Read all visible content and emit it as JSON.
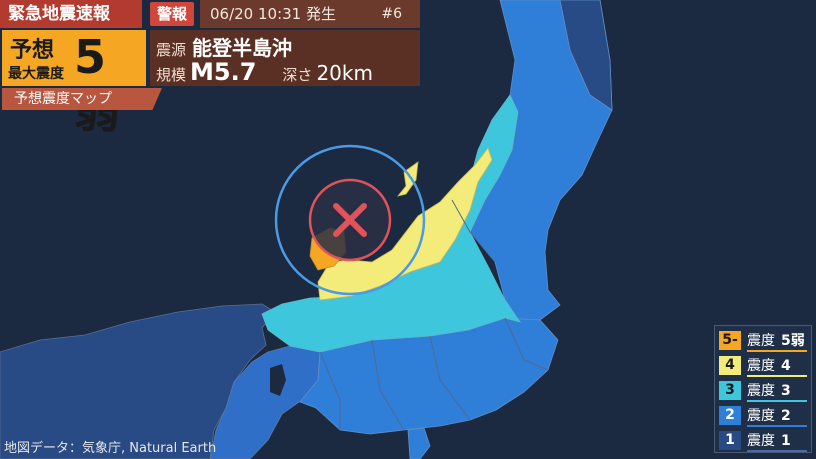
{
  "alert": {
    "title": "緊急地震速報",
    "badge": "警報",
    "origin_time": "06/20 10:31 発生",
    "sequence": "#6",
    "forecast_label_1": "予想",
    "forecast_label_2": "最大震度",
    "forecast_value": "5弱",
    "epicenter_key": "震源",
    "epicenter_value": "能登半島沖",
    "magnitude_key": "規模",
    "magnitude_value": "M5.7",
    "depth_key": "深さ",
    "depth_value": "20km",
    "map_label": "予想震度マップ"
  },
  "legend": {
    "items": [
      {
        "code": "5-",
        "label": "震度",
        "value": "5弱",
        "color": "#f5a623",
        "text_color": "#1a1a1a"
      },
      {
        "code": "4",
        "label": "震度",
        "value": "4",
        "color": "#f3ec7a",
        "text_color": "#1a1a1a"
      },
      {
        "code": "3",
        "label": "震度",
        "value": "3",
        "color": "#3ec6dc",
        "text_color": "#1a1a1a"
      },
      {
        "code": "2",
        "label": "震度",
        "value": "2",
        "color": "#2f7fd8",
        "text_color": "#ffffff"
      },
      {
        "code": "1",
        "label": "震度",
        "value": "1",
        "color": "#284a85",
        "text_color": "#ffffff"
      }
    ]
  },
  "credit": "地図データ：気象庁, Natural Earth",
  "colors": {
    "sea": "#1b2a40",
    "shindo_5_weak": "#f5a623",
    "shindo_4": "#f3ec7a",
    "shindo_3": "#3ec6dc",
    "shindo_2": "#2f7fd8",
    "shindo_1": "#284a85",
    "wave_circle": "#4a9be6",
    "epicenter_mark": "#e0535a"
  }
}
